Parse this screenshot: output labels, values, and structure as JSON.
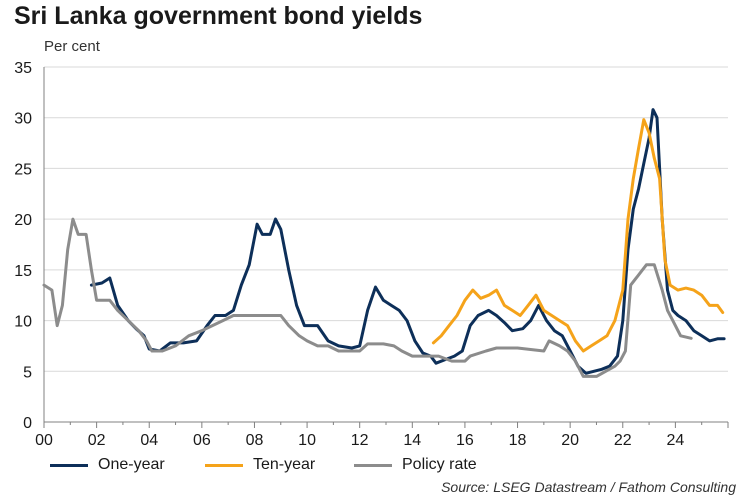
{
  "title": "Sri Lanka government bond yields",
  "subtitle": "Per cent",
  "source": "Source: LSEG Datastream / Fathom Consulting",
  "colors": {
    "one_year": "#0d2f59",
    "ten_year": "#f5a31a",
    "policy_rate": "#8c8c8c",
    "grid": "#d9d9d9",
    "axis": "#808080"
  },
  "chart_data": {
    "type": "line",
    "xlabel": "",
    "ylabel": "",
    "xlim": [
      2000,
      2026
    ],
    "ylim": [
      0,
      35
    ],
    "yticks": [
      0,
      5,
      10,
      15,
      20,
      25,
      30,
      35
    ],
    "xticks": [
      "00",
      "02",
      "04",
      "06",
      "08",
      "10",
      "12",
      "14",
      "16",
      "18",
      "20",
      "22",
      "24"
    ],
    "xtick_values": [
      2000,
      2002,
      2004,
      2006,
      2008,
      2010,
      2012,
      2014,
      2016,
      2018,
      2020,
      2022,
      2024
    ],
    "grid": "horizontal",
    "legend_position": "bottom",
    "series": [
      {
        "name": "One-year",
        "key": "one_year",
        "points": [
          [
            2001.8,
            13.5
          ],
          [
            2002.2,
            13.7
          ],
          [
            2002.5,
            14.2
          ],
          [
            2002.8,
            11.5
          ],
          [
            2003.2,
            10.0
          ],
          [
            2003.5,
            9.2
          ],
          [
            2003.8,
            8.5
          ],
          [
            2004.0,
            7.2
          ],
          [
            2004.4,
            7.0
          ],
          [
            2004.8,
            7.8
          ],
          [
            2005.3,
            7.8
          ],
          [
            2005.8,
            8.0
          ],
          [
            2006.2,
            9.5
          ],
          [
            2006.5,
            10.5
          ],
          [
            2006.9,
            10.5
          ],
          [
            2007.2,
            11.0
          ],
          [
            2007.5,
            13.5
          ],
          [
            2007.8,
            15.5
          ],
          [
            2008.1,
            19.5
          ],
          [
            2008.3,
            18.5
          ],
          [
            2008.6,
            18.5
          ],
          [
            2008.8,
            20.0
          ],
          [
            2009.0,
            19.0
          ],
          [
            2009.3,
            15.0
          ],
          [
            2009.6,
            11.5
          ],
          [
            2009.9,
            9.5
          ],
          [
            2010.4,
            9.5
          ],
          [
            2010.8,
            8.0
          ],
          [
            2011.2,
            7.5
          ],
          [
            2011.7,
            7.3
          ],
          [
            2012.0,
            7.5
          ],
          [
            2012.3,
            11.0
          ],
          [
            2012.6,
            13.3
          ],
          [
            2012.9,
            12.0
          ],
          [
            2013.2,
            11.5
          ],
          [
            2013.5,
            11.0
          ],
          [
            2013.8,
            10.0
          ],
          [
            2014.1,
            8.0
          ],
          [
            2014.4,
            6.8
          ],
          [
            2014.7,
            6.5
          ],
          [
            2014.9,
            5.8
          ],
          [
            2015.3,
            6.2
          ],
          [
            2015.6,
            6.5
          ],
          [
            2015.9,
            7.0
          ],
          [
            2016.2,
            9.5
          ],
          [
            2016.5,
            10.5
          ],
          [
            2016.9,
            11.0
          ],
          [
            2017.2,
            10.5
          ],
          [
            2017.5,
            9.8
          ],
          [
            2017.8,
            9.0
          ],
          [
            2018.2,
            9.2
          ],
          [
            2018.5,
            10.0
          ],
          [
            2018.8,
            11.5
          ],
          [
            2019.1,
            10.0
          ],
          [
            2019.4,
            9.0
          ],
          [
            2019.7,
            8.5
          ],
          [
            2020.0,
            7.0
          ],
          [
            2020.3,
            5.5
          ],
          [
            2020.6,
            4.8
          ],
          [
            2020.9,
            5.0
          ],
          [
            2021.2,
            5.2
          ],
          [
            2021.5,
            5.5
          ],
          [
            2021.8,
            6.5
          ],
          [
            2022.0,
            10.0
          ],
          [
            2022.2,
            17.0
          ],
          [
            2022.4,
            21.0
          ],
          [
            2022.6,
            23.0
          ],
          [
            2022.8,
            25.5
          ],
          [
            2023.0,
            28.0
          ],
          [
            2023.15,
            30.8
          ],
          [
            2023.3,
            30.0
          ],
          [
            2023.5,
            20.0
          ],
          [
            2023.7,
            13.0
          ],
          [
            2023.9,
            11.0
          ],
          [
            2024.1,
            10.5
          ],
          [
            2024.4,
            10.0
          ],
          [
            2024.7,
            9.0
          ],
          [
            2025.0,
            8.5
          ],
          [
            2025.3,
            8.0
          ],
          [
            2025.6,
            8.2
          ],
          [
            2025.85,
            8.2
          ]
        ]
      },
      {
        "name": "Ten-year",
        "key": "ten_year",
        "points": [
          [
            2014.8,
            7.8
          ],
          [
            2015.1,
            8.5
          ],
          [
            2015.4,
            9.5
          ],
          [
            2015.7,
            10.5
          ],
          [
            2016.0,
            12.0
          ],
          [
            2016.3,
            13.0
          ],
          [
            2016.6,
            12.2
          ],
          [
            2016.9,
            12.5
          ],
          [
            2017.2,
            13.0
          ],
          [
            2017.5,
            11.5
          ],
          [
            2017.8,
            11.0
          ],
          [
            2018.1,
            10.5
          ],
          [
            2018.4,
            11.5
          ],
          [
            2018.7,
            12.5
          ],
          [
            2019.0,
            11.0
          ],
          [
            2019.3,
            10.5
          ],
          [
            2019.6,
            10.0
          ],
          [
            2019.9,
            9.5
          ],
          [
            2020.2,
            8.0
          ],
          [
            2020.5,
            7.0
          ],
          [
            2020.8,
            7.5
          ],
          [
            2021.1,
            8.0
          ],
          [
            2021.4,
            8.5
          ],
          [
            2021.7,
            10.0
          ],
          [
            2022.0,
            13.0
          ],
          [
            2022.2,
            20.0
          ],
          [
            2022.4,
            24.0
          ],
          [
            2022.6,
            27.0
          ],
          [
            2022.8,
            29.8
          ],
          [
            2023.0,
            28.5
          ],
          [
            2023.2,
            26.0
          ],
          [
            2023.4,
            24.0
          ],
          [
            2023.6,
            16.0
          ],
          [
            2023.8,
            13.5
          ],
          [
            2024.1,
            13.0
          ],
          [
            2024.4,
            13.2
          ],
          [
            2024.7,
            13.0
          ],
          [
            2025.0,
            12.5
          ],
          [
            2025.3,
            11.5
          ],
          [
            2025.6,
            11.5
          ],
          [
            2025.8,
            10.8
          ]
        ]
      },
      {
        "name": "Policy rate",
        "key": "policy_rate",
        "points": [
          [
            2000.0,
            13.5
          ],
          [
            2000.3,
            13.0
          ],
          [
            2000.5,
            9.5
          ],
          [
            2000.7,
            11.5
          ],
          [
            2000.9,
            17.0
          ],
          [
            2001.1,
            20.0
          ],
          [
            2001.3,
            18.5
          ],
          [
            2001.6,
            18.5
          ],
          [
            2001.8,
            15.0
          ],
          [
            2002.0,
            12.0
          ],
          [
            2002.5,
            12.0
          ],
          [
            2002.8,
            11.0
          ],
          [
            2003.2,
            10.0
          ],
          [
            2003.6,
            9.0
          ],
          [
            2003.9,
            8.0
          ],
          [
            2004.1,
            7.0
          ],
          [
            2004.5,
            7.0
          ],
          [
            2005.0,
            7.5
          ],
          [
            2005.5,
            8.5
          ],
          [
            2006.0,
            9.0
          ],
          [
            2006.4,
            9.5
          ],
          [
            2006.8,
            10.0
          ],
          [
            2007.2,
            10.5
          ],
          [
            2008.0,
            10.5
          ],
          [
            2009.0,
            10.5
          ],
          [
            2009.3,
            9.5
          ],
          [
            2009.7,
            8.5
          ],
          [
            2010.0,
            8.0
          ],
          [
            2010.4,
            7.5
          ],
          [
            2010.8,
            7.5
          ],
          [
            2011.2,
            7.0
          ],
          [
            2012.0,
            7.0
          ],
          [
            2012.3,
            7.7
          ],
          [
            2012.9,
            7.7
          ],
          [
            2013.3,
            7.5
          ],
          [
            2013.6,
            7.0
          ],
          [
            2014.0,
            6.5
          ],
          [
            2015.0,
            6.5
          ],
          [
            2015.5,
            6.0
          ],
          [
            2016.0,
            6.0
          ],
          [
            2016.2,
            6.5
          ],
          [
            2016.8,
            7.0
          ],
          [
            2017.2,
            7.3
          ],
          [
            2018.0,
            7.3
          ],
          [
            2019.0,
            7.0
          ],
          [
            2019.2,
            8.0
          ],
          [
            2019.6,
            7.5
          ],
          [
            2019.9,
            7.0
          ],
          [
            2020.2,
            6.0
          ],
          [
            2020.5,
            4.5
          ],
          [
            2021.0,
            4.5
          ],
          [
            2021.7,
            5.5
          ],
          [
            2021.9,
            6.0
          ],
          [
            2022.1,
            7.0
          ],
          [
            2022.3,
            13.5
          ],
          [
            2022.6,
            14.5
          ],
          [
            2022.9,
            15.5
          ],
          [
            2023.2,
            15.5
          ],
          [
            2023.5,
            13.0
          ],
          [
            2023.7,
            11.0
          ],
          [
            2023.9,
            10.0
          ],
          [
            2024.2,
            8.5
          ],
          [
            2024.6,
            8.25
          ]
        ]
      }
    ]
  }
}
